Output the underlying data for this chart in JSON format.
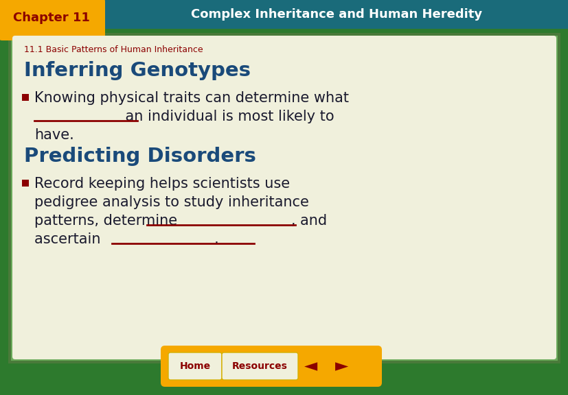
{
  "fig_width": 8.28,
  "fig_height": 5.76,
  "dpi": 100,
  "bg_outer": "#2d7a2d",
  "bg_header": "#1a6b7a",
  "bg_chapter_tab": "#f5a800",
  "bg_content": "#f0f0dc",
  "chapter_label": "Chapter 11",
  "chapter_label_color": "#8b0000",
  "header_title": "Complex Inheritance and Human Heredity",
  "header_title_color": "#ffffff",
  "subtitle": "11.1 Basic Patterns of Human Inheritance",
  "subtitle_color": "#8b0000",
  "section1_title": "Inferring Genotypes",
  "section1_title_color": "#1a4a7a",
  "bullet_color": "#8b0000",
  "bullet1_text_line1": "Knowing physical traits can determine what",
  "bullet1_text_line2": "              an individual is most likely to",
  "bullet1_text_line3": "have.",
  "text_color": "#1a1a2e",
  "section2_title": "Predicting Disorders",
  "section2_title_color": "#1a4a7a",
  "bullet2_text_line1": "Record keeping helps scientists use",
  "bullet2_text_line2": "pedigree analysis to study inheritance",
  "bullet2_text_line3": "patterns, determine               , and",
  "bullet2_text_line4": "ascertain               .",
  "underline_color": "#8b0000",
  "nav_bg": "#f5a800",
  "nav_btn_bg": "#f0f0dc",
  "nav_btn_color": "#8b0000",
  "nav_btn1": "Home",
  "nav_btn2": "Resources",
  "nav_arrow_color": "#8b0000",
  "content_border_color": "#4a7a3a",
  "content_border_color2": "#6aaa5a"
}
